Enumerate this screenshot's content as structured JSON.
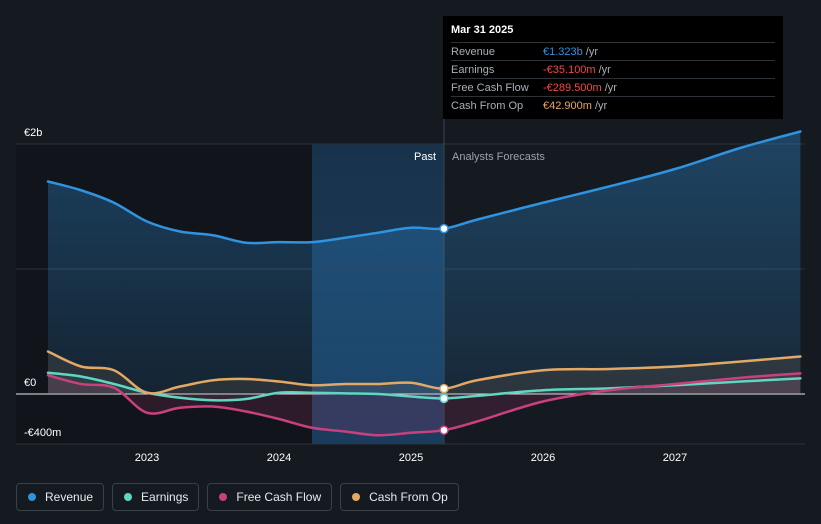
{
  "chart_data": {
    "type": "line",
    "y_tick_labels": [
      "€2b",
      "€0",
      "-€400m"
    ],
    "x_tick_labels": [
      "2023",
      "2024",
      "2025",
      "2026",
      "2027"
    ],
    "ylim": [
      -400,
      2000
    ],
    "period_labels": {
      "past": "Past",
      "forecast": "Analysts Forecasts"
    },
    "series": [
      {
        "name": "Revenue",
        "color": "#2f93e0",
        "points": [
          [
            2022.25,
            1700
          ],
          [
            2022.5,
            1630
          ],
          [
            2022.75,
            1530
          ],
          [
            2023.0,
            1380
          ],
          [
            2023.25,
            1300
          ],
          [
            2023.5,
            1270
          ],
          [
            2023.75,
            1210
          ],
          [
            2024.0,
            1215
          ],
          [
            2024.25,
            1215
          ],
          [
            2024.5,
            1250
          ],
          [
            2024.75,
            1290
          ],
          [
            2025.0,
            1330
          ],
          [
            2025.25,
            1323
          ],
          [
            2025.5,
            1395
          ],
          [
            2026.0,
            1530
          ],
          [
            2026.5,
            1660
          ],
          [
            2027.0,
            1800
          ],
          [
            2027.5,
            1970
          ],
          [
            2027.95,
            2100
          ]
        ]
      },
      {
        "name": "Earnings",
        "color": "#5fd6c2",
        "points": [
          [
            2022.25,
            170
          ],
          [
            2022.5,
            140
          ],
          [
            2022.75,
            80
          ],
          [
            2023.0,
            10
          ],
          [
            2023.25,
            -30
          ],
          [
            2023.5,
            -50
          ],
          [
            2023.75,
            -40
          ],
          [
            2024.0,
            10
          ],
          [
            2024.25,
            10
          ],
          [
            2024.5,
            5
          ],
          [
            2024.75,
            0
          ],
          [
            2025.0,
            -20
          ],
          [
            2025.25,
            -35.1
          ],
          [
            2025.5,
            -15
          ],
          [
            2026.0,
            30
          ],
          [
            2026.5,
            45
          ],
          [
            2027.0,
            70
          ],
          [
            2027.5,
            100
          ],
          [
            2027.95,
            125
          ]
        ]
      },
      {
        "name": "Free Cash Flow",
        "color": "#c8417e",
        "points": [
          [
            2022.25,
            150
          ],
          [
            2022.5,
            80
          ],
          [
            2022.75,
            50
          ],
          [
            2023.0,
            -150
          ],
          [
            2023.25,
            -110
          ],
          [
            2023.5,
            -100
          ],
          [
            2023.75,
            -140
          ],
          [
            2024.0,
            -200
          ],
          [
            2024.25,
            -270
          ],
          [
            2024.5,
            -300
          ],
          [
            2024.75,
            -330
          ],
          [
            2025.0,
            -310
          ],
          [
            2025.25,
            -289.5
          ],
          [
            2025.5,
            -220
          ],
          [
            2026.0,
            -60
          ],
          [
            2026.5,
            30
          ],
          [
            2027.0,
            80
          ],
          [
            2027.5,
            130
          ],
          [
            2027.95,
            165
          ]
        ]
      },
      {
        "name": "Cash From Op",
        "color": "#e3a864",
        "points": [
          [
            2022.25,
            340
          ],
          [
            2022.5,
            220
          ],
          [
            2022.75,
            190
          ],
          [
            2023.0,
            10
          ],
          [
            2023.25,
            60
          ],
          [
            2023.5,
            110
          ],
          [
            2023.75,
            120
          ],
          [
            2024.0,
            100
          ],
          [
            2024.25,
            70
          ],
          [
            2024.5,
            80
          ],
          [
            2024.75,
            80
          ],
          [
            2025.0,
            90
          ],
          [
            2025.25,
            42.9
          ],
          [
            2025.5,
            110
          ],
          [
            2026.0,
            190
          ],
          [
            2026.5,
            200
          ],
          [
            2027.0,
            220
          ],
          [
            2027.5,
            260
          ],
          [
            2027.95,
            300
          ]
        ]
      }
    ]
  },
  "tooltip": {
    "date": "Mar 31 2025",
    "rows": [
      {
        "label": "Revenue",
        "value": "€1.323b",
        "unit": "/yr",
        "color": "#2f93e0"
      },
      {
        "label": "Earnings",
        "value": "-€35.100m",
        "unit": "/yr",
        "color": "#f04949"
      },
      {
        "label": "Free Cash Flow",
        "value": "-€289.500m",
        "unit": "/yr",
        "color": "#f04949"
      },
      {
        "label": "Cash From Op",
        "value": "€42.900m",
        "unit": "/yr",
        "color": "#e3a864"
      }
    ]
  },
  "legend": [
    {
      "label": "Revenue",
      "color": "#2f93e0"
    },
    {
      "label": "Earnings",
      "color": "#5fd6c2"
    },
    {
      "label": "Free Cash Flow",
      "color": "#c8417e"
    },
    {
      "label": "Cash From Op",
      "color": "#e3a864"
    }
  ]
}
